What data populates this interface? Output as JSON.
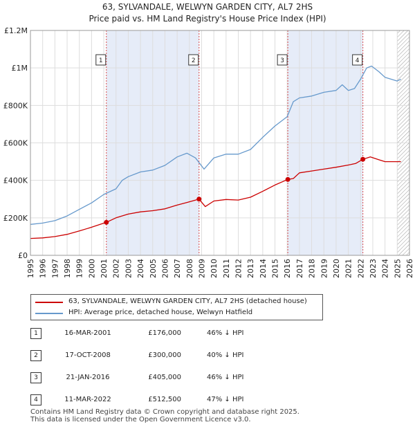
{
  "title": "63, SYLVANDALE, WELWYN GARDEN CITY, AL7 2HS",
  "subtitle": "Price paid vs. HM Land Registry's House Price Index (HPI)",
  "colors": {
    "price": "#cc0000",
    "hpi": "#6699cc",
    "shade": "#e6ecf8",
    "marker": "#cc0000"
  },
  "chart_data": {
    "type": "line",
    "x_range": [
      1995,
      2026
    ],
    "ylim": [
      0,
      1200000
    ],
    "y_ticks": [
      {
        "value": 0,
        "label": "£0"
      },
      {
        "value": 200000,
        "label": "£200K"
      },
      {
        "value": 400000,
        "label": "£400K"
      },
      {
        "value": 600000,
        "label": "£600K"
      },
      {
        "value": 800000,
        "label": "£800K"
      },
      {
        "value": 1000000,
        "label": "£1M"
      },
      {
        "value": 1200000,
        "label": "£1.2M"
      }
    ],
    "x_ticks": [
      "1995",
      "1996",
      "1997",
      "1998",
      "1999",
      "2000",
      "2001",
      "2002",
      "2003",
      "2004",
      "2005",
      "2006",
      "2007",
      "2008",
      "2009",
      "2010",
      "2011",
      "2012",
      "2013",
      "2014",
      "2015",
      "2016",
      "2017",
      "2018",
      "2019",
      "2020",
      "2021",
      "2022",
      "2023",
      "2024",
      "2025",
      "2026"
    ],
    "shaded_ranges": [
      [
        2001.21,
        2008.79
      ],
      [
        2016.05,
        2022.19
      ]
    ],
    "hatch_from": 2025.0,
    "series": [
      {
        "name": "63, SYLVANDALE, WELWYN GARDEN CITY, AL7 2HS (detached house)",
        "x": [
          1995.0,
          1996.0,
          1997.0,
          1998.0,
          1999.0,
          2000.0,
          2001.21,
          2002.0,
          2003.0,
          2004.0,
          2005.0,
          2006.0,
          2007.0,
          2007.8,
          2008.79,
          2009.3,
          2010.0,
          2011.0,
          2012.0,
          2013.0,
          2014.0,
          2015.0,
          2016.05,
          2016.5,
          2017.0,
          2018.0,
          2019.0,
          2020.0,
          2021.0,
          2021.6,
          2022.19,
          2022.8,
          2023.5,
          2024.0,
          2025.0,
          2025.3
        ],
        "values": [
          90000,
          93000,
          100000,
          112000,
          130000,
          150000,
          176000,
          200000,
          220000,
          232000,
          238000,
          248000,
          268000,
          282000,
          300000,
          260000,
          290000,
          298000,
          295000,
          310000,
          342000,
          375000,
          405000,
          410000,
          440000,
          450000,
          460000,
          470000,
          482000,
          490000,
          512500,
          525000,
          510000,
          500000,
          500000,
          500000
        ]
      },
      {
        "name": "HPI: Average price, detached house, Welwyn Hatfield",
        "x": [
          1995.0,
          1996.0,
          1997.0,
          1998.0,
          1999.0,
          2000.0,
          2001.0,
          2002.0,
          2002.5,
          2003.0,
          2004.0,
          2005.0,
          2006.0,
          2007.0,
          2007.8,
          2008.5,
          2009.2,
          2010.0,
          2011.0,
          2012.0,
          2013.0,
          2014.0,
          2015.0,
          2016.0,
          2016.5,
          2017.0,
          2018.0,
          2019.0,
          2020.0,
          2020.5,
          2021.0,
          2021.5,
          2022.0,
          2022.5,
          2022.9,
          2023.5,
          2024.0,
          2025.0,
          2025.3
        ],
        "values": [
          165000,
          172000,
          185000,
          210000,
          245000,
          280000,
          325000,
          355000,
          400000,
          420000,
          445000,
          455000,
          480000,
          525000,
          545000,
          520000,
          460000,
          520000,
          540000,
          540000,
          565000,
          630000,
          690000,
          740000,
          820000,
          840000,
          850000,
          870000,
          880000,
          910000,
          880000,
          890000,
          940000,
          1000000,
          1010000,
          980000,
          950000,
          930000,
          940000
        ]
      }
    ],
    "sales": [
      {
        "label": "1",
        "x": 2001.21,
        "value": 176000
      },
      {
        "label": "2",
        "x": 2008.79,
        "value": 300000
      },
      {
        "label": "3",
        "x": 2016.05,
        "value": 405000
      },
      {
        "label": "4",
        "x": 2022.19,
        "value": 512500
      }
    ]
  },
  "legend": {
    "price": "63, SYLVANDALE, WELWYN GARDEN CITY, AL7 2HS (detached house)",
    "hpi": "HPI: Average price, detached house, Welwyn Hatfield"
  },
  "transactions": [
    {
      "num": "1",
      "date": "16-MAR-2001",
      "price": "£176,000",
      "hpi": "46% ↓ HPI"
    },
    {
      "num": "2",
      "date": "17-OCT-2008",
      "price": "£300,000",
      "hpi": "40% ↓ HPI"
    },
    {
      "num": "3",
      "date": "21-JAN-2016",
      "price": "£405,000",
      "hpi": "46% ↓ HPI"
    },
    {
      "num": "4",
      "date": "11-MAR-2022",
      "price": "£512,500",
      "hpi": "47% ↓ HPI"
    }
  ],
  "footer": {
    "line1": "Contains HM Land Registry data © Crown copyright and database right 2025.",
    "line2": "This data is licensed under the Open Government Licence v3.0."
  }
}
